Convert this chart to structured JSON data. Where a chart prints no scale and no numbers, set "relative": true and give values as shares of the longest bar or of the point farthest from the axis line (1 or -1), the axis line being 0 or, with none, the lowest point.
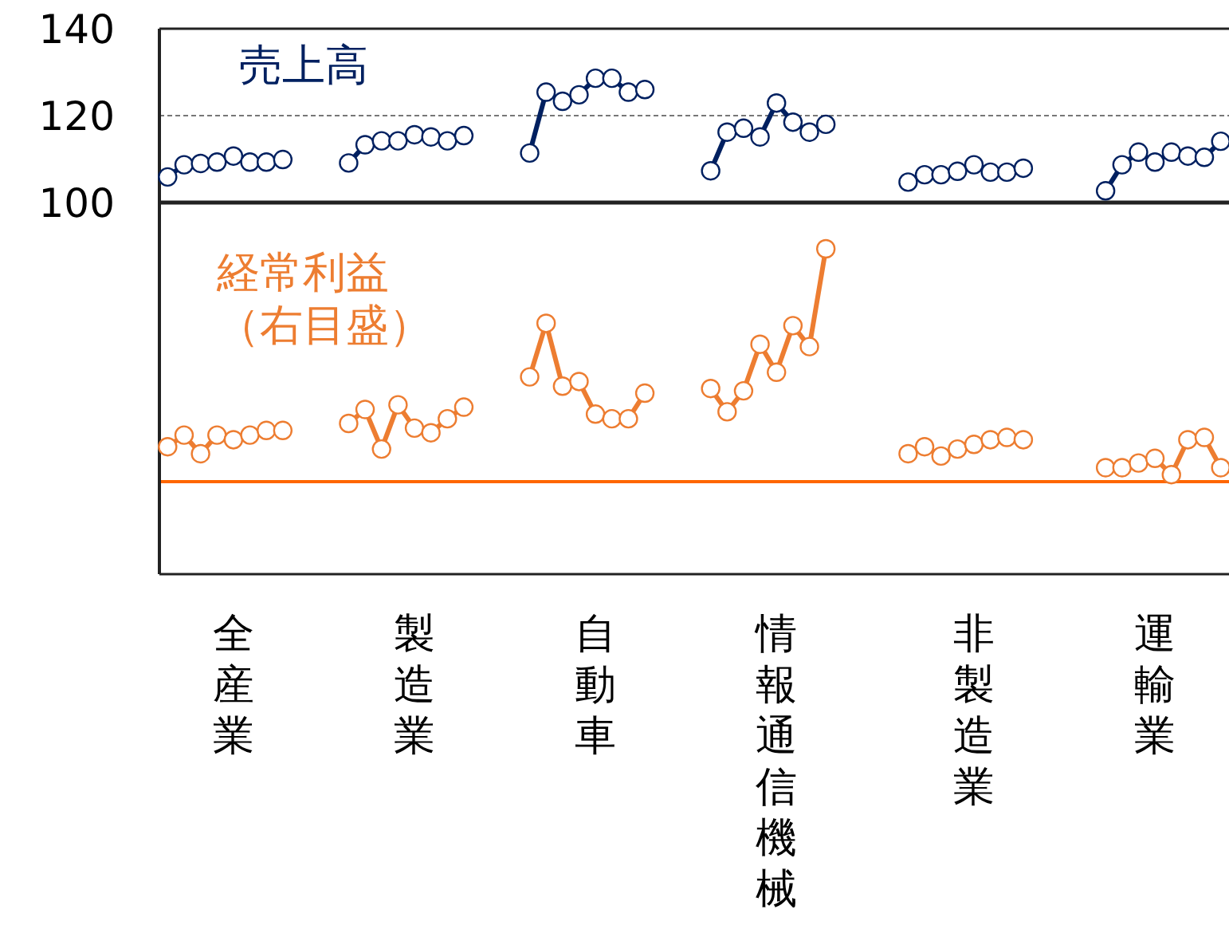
{
  "chart_data": [
    {
      "type": "line",
      "categories": [
        null,
        null,
        null,
        null,
        null,
        null,
        null,
        null,
        null,
        null,
        null,
        null,
        null,
        null,
        null,
        null,
        null,
        null,
        null,
        null,
        null,
        null,
        null,
        null,
        null,
        null,
        null,
        null,
        null,
        null,
        null,
        null,
        null,
        null,
        null,
        null,
        null,
        null,
        null,
        null,
        null,
        null,
        null,
        null,
        null,
        null,
        null,
        null,
        null,
        null,
        null,
        null,
        null,
        null,
        null,
        null,
        null,
        null,
        null,
        null,
        null,
        null,
        null,
        null,
        null
      ],
      "series": [
        {
          "name": "売上高",
          "color": "#002060",
          "values": [
            105.9,
            108.7,
            109.0,
            109.3,
            110.7,
            109.3,
            109.3,
            109.9,
            null,
            null,
            null,
            109.1,
            113.3,
            114.2,
            114.2,
            115.6,
            115.1,
            114.2,
            115.4,
            null,
            null,
            null,
            111.4,
            125.4,
            123.3,
            124.8,
            128.6,
            128.6,
            125.4,
            126.0,
            null,
            null,
            null,
            107.3,
            116.2,
            117.1,
            115.1,
            122.9,
            118.5,
            116.2,
            118.0,
            null,
            null,
            null,
            null,
            104.7,
            106.4,
            106.4,
            107.2,
            108.7,
            107.0,
            107.0,
            107.9,
            null,
            null,
            null,
            null,
            102.7,
            108.7,
            111.6,
            109.3,
            111.6,
            110.7,
            110.4,
            114.1
          ]
        }
      ],
      "ylim": [
        100,
        140
      ],
      "yticks": [
        100,
        120,
        140
      ],
      "grid": "y",
      "marker": "circle",
      "tick_labels": "y"
    },
    {
      "type": "line",
      "categories": [
        null,
        null,
        null,
        null,
        "全産業",
        null,
        null,
        null,
        null,
        null,
        null,
        null,
        null,
        null,
        null,
        "製造業",
        null,
        null,
        null,
        null,
        null,
        null,
        null,
        null,
        null,
        null,
        "自動車",
        null,
        null,
        null,
        null,
        null,
        null,
        null,
        null,
        null,
        null,
        "情報通信機械",
        null,
        null,
        null,
        null,
        null,
        null,
        null,
        null,
        null,
        null,
        null,
        "非製造業",
        null,
        null,
        null,
        null,
        null,
        null,
        null,
        null,
        null,
        null,
        "運輸業",
        null,
        null,
        null,
        null
      ],
      "series": [
        {
          "name": "経常利益（右目盛）",
          "color": "#ed7d31",
          "values": [
            0.15,
            0.2,
            0.12,
            0.2,
            0.18,
            0.2,
            0.22,
            0.22,
            null,
            null,
            null,
            0.25,
            0.31,
            0.14,
            0.33,
            0.23,
            0.21,
            0.27,
            0.32,
            null,
            null,
            null,
            0.45,
            0.68,
            0.41,
            0.43,
            0.29,
            0.27,
            0.27,
            0.38,
            null,
            null,
            null,
            0.4,
            0.3,
            0.39,
            0.59,
            0.47,
            0.67,
            0.58,
            1,
            null,
            null,
            null,
            null,
            0.12,
            0.15,
            0.11,
            0.14,
            0.16,
            0.18,
            0.19,
            0.18,
            null,
            null,
            null,
            null,
            0.06,
            0.06,
            0.08,
            0.1,
            0.03,
            0.18,
            0.19,
            0.06
          ]
        }
      ],
      "relative": true,
      "marker": "circle",
      "ref_lines": [
        {
          "axis": "y",
          "value": 0,
          "color": "#ff6600"
        }
      ]
    }
  ]
}
